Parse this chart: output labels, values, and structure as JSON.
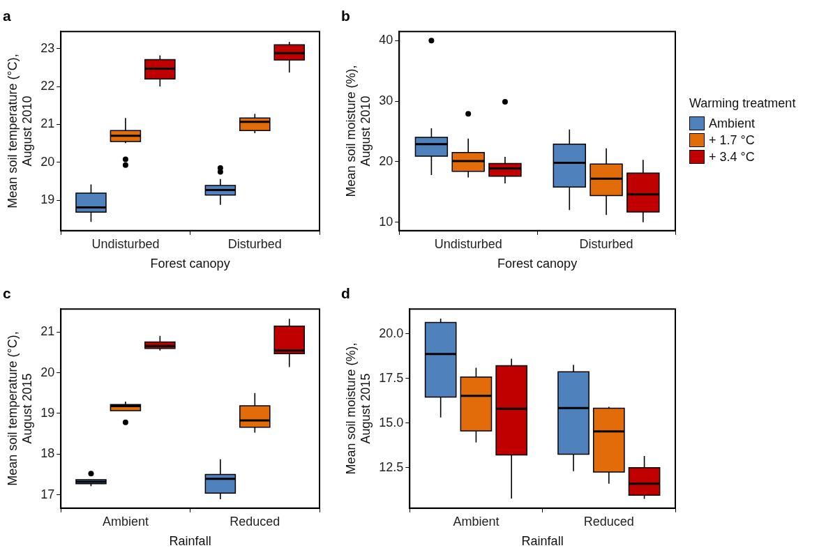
{
  "chart_data": [
    {
      "type": "box",
      "title": "a",
      "xlabel": "Forest canopy",
      "ylabel": "Mean soil temperature (°C),\nAugust 2010",
      "categories": [
        "Undisturbed",
        "Disturbed"
      ],
      "ylim": [
        18.2,
        23.45
      ],
      "yticks": [
        19,
        20,
        21,
        22,
        23
      ],
      "grid": false,
      "legend": false,
      "series": [
        {
          "color": "#4f81bd",
          "boxes": [
            {
              "low": 18.43,
              "q1": 18.69,
              "median": 18.81,
              "q3": 19.19,
              "high": 19.42
            },
            {
              "low": 18.88,
              "q1": 19.14,
              "median": 19.27,
              "q3": 19.39,
              "high": 19.56,
              "outliers": [
                19.85,
                19.75
              ]
            }
          ]
        },
        {
          "color": "#e36c0a",
          "boxes": [
            {
              "low": 20.51,
              "q1": 20.55,
              "median": 20.7,
              "q3": 20.84,
              "high": 21.17,
              "outliers": [
                20.08,
                19.93
              ]
            },
            {
              "low": 20.77,
              "q1": 20.84,
              "median": 21.07,
              "q3": 21.17,
              "high": 21.28
            }
          ]
        },
        {
          "color": "#c00000",
          "boxes": [
            {
              "low": 22.0,
              "q1": 22.2,
              "median": 22.47,
              "q3": 22.71,
              "high": 22.82
            },
            {
              "low": 22.37,
              "q1": 22.7,
              "median": 22.88,
              "q3": 23.1,
              "high": 23.18
            }
          ]
        }
      ]
    },
    {
      "type": "box",
      "title": "b",
      "xlabel": "Forest canopy",
      "ylabel": "Mean soil moisture (%),\nAugust 2010",
      "categories": [
        "Undisturbed",
        "Disturbed"
      ],
      "ylim": [
        8.6,
        41.5
      ],
      "yticks": [
        10,
        20,
        30,
        40
      ],
      "grid": false,
      "legend": "right",
      "legend_title": "Warming treatment",
      "series": [
        {
          "name": "Ambient",
          "color": "#4f81bd",
          "boxes": [
            {
              "low": 17.8,
              "q1": 20.9,
              "median": 22.9,
              "q3": 24.0,
              "high": 25.5,
              "outliers": [
                40
              ]
            },
            {
              "low": 12.0,
              "q1": 15.8,
              "median": 19.8,
              "q3": 22.9,
              "high": 25.3
            }
          ]
        },
        {
          "name": "+ 1.7 °C",
          "color": "#e36c0a",
          "boxes": [
            {
              "low": 17.4,
              "q1": 18.4,
              "median": 20.1,
              "q3": 21.5,
              "high": 23.8,
              "outliers": [
                27.9
              ]
            },
            {
              "low": 11.2,
              "q1": 14.4,
              "median": 17.2,
              "q3": 19.6,
              "high": 22.2
            }
          ]
        },
        {
          "name": "+ 3.4 °C",
          "color": "#c00000",
          "boxes": [
            {
              "low": 16.4,
              "q1": 17.6,
              "median": 18.9,
              "q3": 19.7,
              "high": 20.8,
              "outliers": [
                29.9
              ]
            },
            {
              "low": 10.0,
              "q1": 11.7,
              "median": 14.6,
              "q3": 18.1,
              "high": 20.3
            }
          ]
        }
      ]
    },
    {
      "type": "box",
      "title": "c",
      "xlabel": "Rainfall",
      "ylabel": "Mean soil temperature (°C),\nAugust 2015",
      "categories": [
        "Ambient",
        "Reduced"
      ],
      "ylim": [
        16.67,
        21.57
      ],
      "yticks": [
        17,
        18,
        19,
        20,
        21
      ],
      "grid": false,
      "legend": false,
      "series": [
        {
          "color": "#4f81bd",
          "boxes": [
            {
              "low": 17.21,
              "q1": 17.27,
              "median": 17.32,
              "q3": 17.37,
              "high": 17.37,
              "outliers": [
                17.52
              ]
            },
            {
              "low": 16.89,
              "q1": 17.04,
              "median": 17.39,
              "q3": 17.5,
              "high": 17.87
            }
          ]
        },
        {
          "color": "#e36c0a",
          "boxes": [
            {
              "low": 19.07,
              "q1": 19.07,
              "median": 19.18,
              "q3": 19.22,
              "high": 19.29,
              "outliers": [
                18.78
              ]
            },
            {
              "low": 18.53,
              "q1": 18.66,
              "median": 18.83,
              "q3": 19.19,
              "high": 19.5
            }
          ]
        },
        {
          "color": "#c00000",
          "boxes": [
            {
              "low": 20.55,
              "q1": 20.6,
              "median": 20.66,
              "q3": 20.76,
              "high": 20.91
            },
            {
              "low": 20.14,
              "q1": 20.47,
              "median": 20.55,
              "q3": 21.15,
              "high": 21.33
            }
          ]
        }
      ]
    },
    {
      "type": "box",
      "title": "d",
      "xlabel": "Rainfall",
      "ylabel": "Mean soil moisture (%),\nAugust 2015",
      "categories": [
        "Ambient",
        "Reduced"
      ],
      "ylim": [
        10.23,
        21.38
      ],
      "yticks": [
        {
          "value": 12.5,
          "label": "12.5"
        },
        {
          "value": 15,
          "label": "15.0"
        },
        {
          "value": 17.5,
          "label": "17.5"
        },
        {
          "value": 20,
          "label": "20.0"
        }
      ],
      "grid": false,
      "legend": false,
      "series": [
        {
          "color": "#4f81bd",
          "boxes": [
            {
              "low": 15.31,
              "q1": 16.45,
              "median": 18.86,
              "q3": 20.63,
              "high": 20.84
            },
            {
              "low": 12.3,
              "q1": 13.25,
              "median": 15.83,
              "q3": 17.86,
              "high": 18.25
            }
          ]
        },
        {
          "color": "#e36c0a",
          "boxes": [
            {
              "low": 13.91,
              "q1": 14.56,
              "median": 16.52,
              "q3": 17.57,
              "high": 18.09
            },
            {
              "low": 11.6,
              "q1": 12.25,
              "median": 14.53,
              "q3": 15.82,
              "high": 15.9
            }
          ]
        },
        {
          "color": "#c00000",
          "boxes": [
            {
              "low": 10.77,
              "q1": 13.21,
              "median": 15.8,
              "q3": 18.21,
              "high": 18.6
            },
            {
              "low": 10.75,
              "q1": 10.95,
              "median": 11.6,
              "q3": 12.5,
              "high": 13.15
            }
          ]
        }
      ]
    }
  ]
}
